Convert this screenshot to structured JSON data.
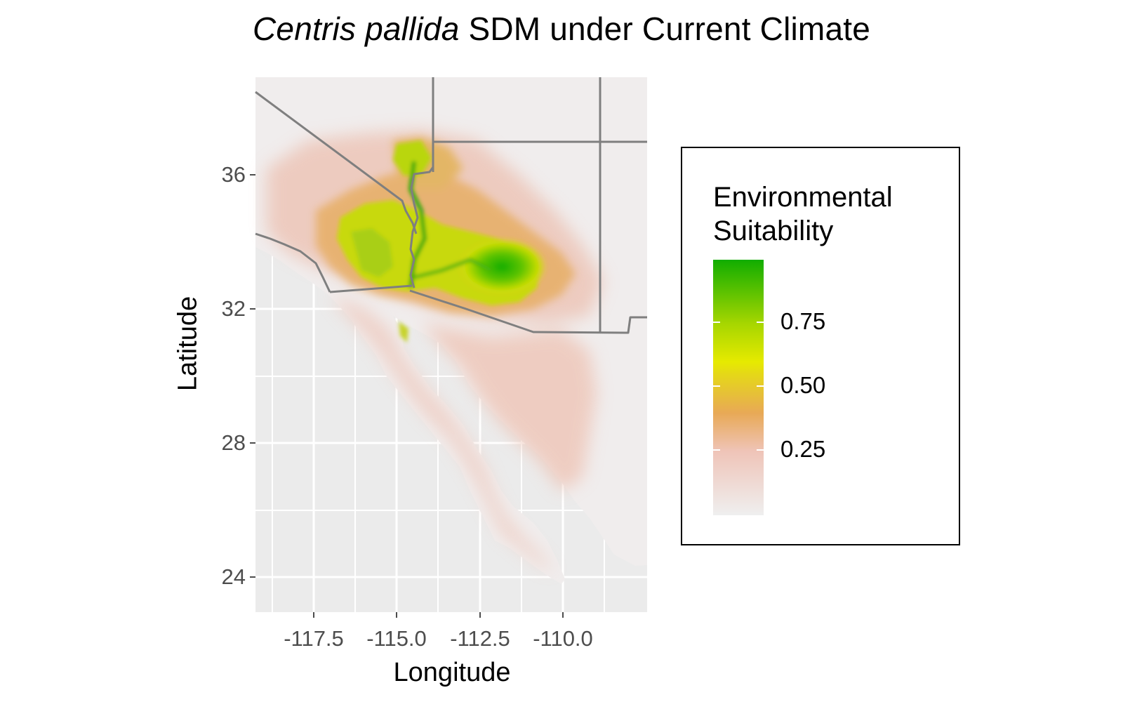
{
  "title": {
    "species": "Centris pallida",
    "rest": "SDM under Current Climate"
  },
  "axes": {
    "x_title": "Longitude",
    "y_title": "Latitude",
    "x_ticks": [
      "-117.5",
      "-115.0",
      "-112.5",
      "-110.0"
    ],
    "y_ticks": [
      "36",
      "32",
      "28",
      "24"
    ],
    "x_range": [
      -119.3,
      -107.6
    ],
    "y_range": [
      22.9,
      38.9
    ]
  },
  "legend": {
    "title_line1": "Environmental",
    "title_line2": "Suitability",
    "labels": [
      "0.75",
      "0.50",
      "0.25"
    ],
    "colors": {
      "low": "#efefef",
      "mid_low": "#e8a956",
      "mid": "#e6ea00",
      "high": "#11ad00"
    }
  },
  "colors": {
    "panel_bg": "#ebebeb",
    "grid": "#ffffff",
    "border_lines": "#7f7f7f"
  }
}
